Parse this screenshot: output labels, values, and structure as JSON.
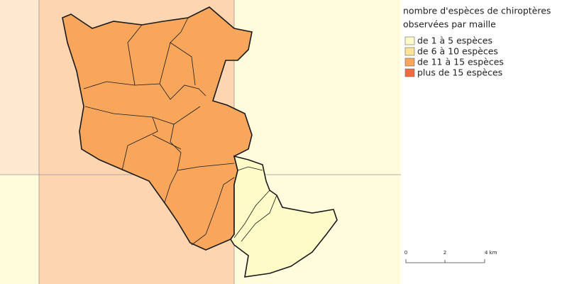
{
  "legend": {
    "title_lines": [
      "nombre d'espèces de chiroptères",
      "observées par maille"
    ],
    "items": [
      {
        "label": "de 1 à 5 espèces",
        "color": "#fffbc8"
      },
      {
        "label": "de 6 à 10 espèces",
        "color": "#fde395"
      },
      {
        "label": "de 11 à 15 espèces",
        "color": "#f7a65c"
      },
      {
        "label": "plus de 15 espèces",
        "color": "#ef6b3d"
      }
    ]
  },
  "scale_bar": {
    "labels": [
      "0",
      "2",
      "4 km"
    ]
  }
}
